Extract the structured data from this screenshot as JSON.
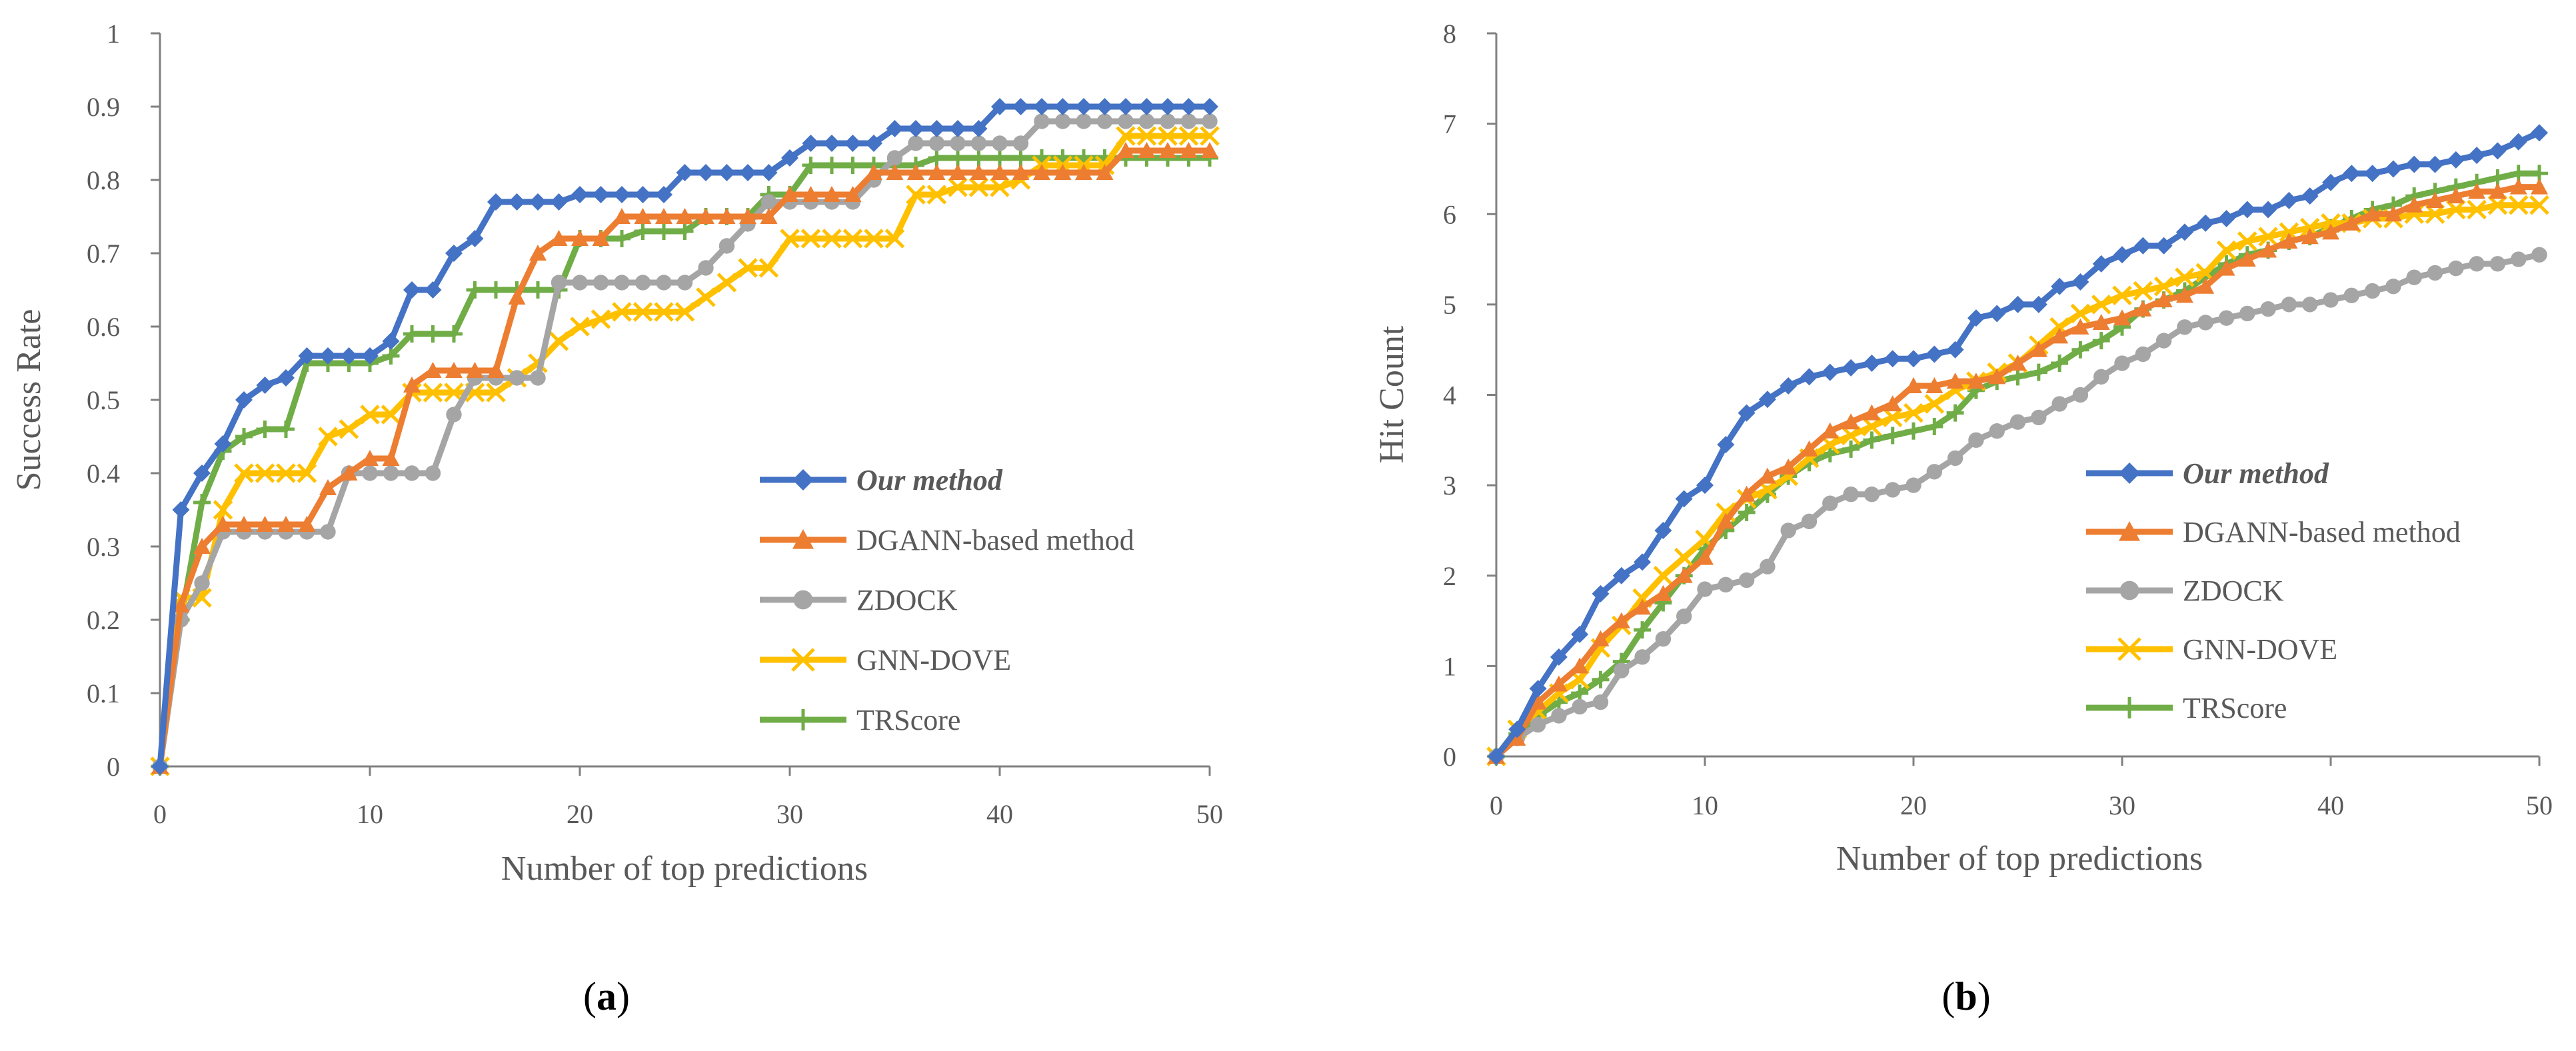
{
  "chart_data": [
    {
      "type": "line",
      "panel_label": "a",
      "xlabel": "Number of top predictions",
      "ylabel": "Success Rate",
      "xlim": [
        0,
        50
      ],
      "ylim": [
        0,
        1
      ],
      "xticks": [
        "0",
        "10",
        "20",
        "30",
        "40",
        "50"
      ],
      "yticks": [
        "0",
        "0.1",
        "0.2",
        "0.3",
        "0.4",
        "0.5",
        "0.6",
        "0.7",
        "0.8",
        "0.9",
        "1"
      ],
      "series": [
        {
          "name": "Our method",
          "emphasis": true,
          "color": "#4472C4",
          "marker": "diamond",
          "values": [
            0,
            0.35,
            0.4,
            0.44,
            0.5,
            0.52,
            0.53,
            0.56,
            0.56,
            0.56,
            0.56,
            0.58,
            0.65,
            0.65,
            0.7,
            0.72,
            0.77,
            0.77,
            0.77,
            0.77,
            0.78,
            0.78,
            0.78,
            0.78,
            0.78,
            0.81,
            0.81,
            0.81,
            0.81,
            0.81,
            0.83,
            0.85,
            0.85,
            0.85,
            0.85,
            0.87,
            0.87,
            0.87,
            0.87,
            0.87,
            0.9,
            0.9,
            0.9,
            0.9,
            0.9,
            0.9,
            0.9,
            0.9,
            0.9,
            0.9,
            0.9
          ]
        },
        {
          "name": "DGANN-based method",
          "emphasis": false,
          "color": "#ED7D31",
          "marker": "triangle",
          "values": [
            0,
            0.22,
            0.3,
            0.33,
            0.33,
            0.33,
            0.33,
            0.33,
            0.38,
            0.4,
            0.42,
            0.42,
            0.52,
            0.54,
            0.54,
            0.54,
            0.54,
            0.64,
            0.7,
            0.72,
            0.72,
            0.72,
            0.75,
            0.75,
            0.75,
            0.75,
            0.75,
            0.75,
            0.75,
            0.75,
            0.78,
            0.78,
            0.78,
            0.78,
            0.81,
            0.81,
            0.81,
            0.81,
            0.81,
            0.81,
            0.81,
            0.81,
            0.81,
            0.81,
            0.81,
            0.81,
            0.84,
            0.84,
            0.84,
            0.84,
            0.84
          ]
        },
        {
          "name": "ZDOCK",
          "emphasis": false,
          "color": "#A5A5A5",
          "marker": "circle",
          "values": [
            0,
            0.2,
            0.25,
            0.32,
            0.32,
            0.32,
            0.32,
            0.32,
            0.32,
            0.4,
            0.4,
            0.4,
            0.4,
            0.4,
            0.48,
            0.53,
            0.53,
            0.53,
            0.53,
            0.66,
            0.66,
            0.66,
            0.66,
            0.66,
            0.66,
            0.66,
            0.68,
            0.71,
            0.74,
            0.77,
            0.77,
            0.77,
            0.77,
            0.77,
            0.8,
            0.83,
            0.85,
            0.85,
            0.85,
            0.85,
            0.85,
            0.85,
            0.88,
            0.88,
            0.88,
            0.88,
            0.88,
            0.88,
            0.88,
            0.88,
            0.88
          ]
        },
        {
          "name": "GNN-DOVE",
          "emphasis": false,
          "color": "#FFC000",
          "marker": "x",
          "values": [
            0,
            0.23,
            0.23,
            0.35,
            0.4,
            0.4,
            0.4,
            0.4,
            0.45,
            0.46,
            0.48,
            0.48,
            0.51,
            0.51,
            0.51,
            0.51,
            0.51,
            0.53,
            0.55,
            0.58,
            0.6,
            0.61,
            0.62,
            0.62,
            0.62,
            0.62,
            0.64,
            0.66,
            0.68,
            0.68,
            0.72,
            0.72,
            0.72,
            0.72,
            0.72,
            0.72,
            0.78,
            0.78,
            0.79,
            0.79,
            0.79,
            0.8,
            0.82,
            0.82,
            0.82,
            0.82,
            0.86,
            0.86,
            0.86,
            0.86,
            0.86
          ]
        },
        {
          "name": "TRScore",
          "emphasis": false,
          "color": "#70AD47",
          "marker": "plus",
          "values": [
            0,
            0.2,
            0.36,
            0.43,
            0.45,
            0.46,
            0.46,
            0.55,
            0.55,
            0.55,
            0.55,
            0.56,
            0.59,
            0.59,
            0.59,
            0.65,
            0.65,
            0.65,
            0.65,
            0.65,
            0.72,
            0.72,
            0.72,
            0.73,
            0.73,
            0.73,
            0.75,
            0.75,
            0.75,
            0.78,
            0.78,
            0.82,
            0.82,
            0.82,
            0.82,
            0.82,
            0.82,
            0.83,
            0.83,
            0.83,
            0.83,
            0.83,
            0.83,
            0.83,
            0.83,
            0.83,
            0.83,
            0.83,
            0.83,
            0.83,
            0.83
          ]
        }
      ]
    },
    {
      "type": "line",
      "panel_label": "b",
      "xlabel": "Number of top predictions",
      "ylabel": "Hit Count",
      "xlim": [
        0,
        50
      ],
      "ylim": [
        0,
        8
      ],
      "xticks": [
        "0",
        "10",
        "20",
        "30",
        "40",
        "50"
      ],
      "yticks": [
        "0",
        "1",
        "2",
        "3",
        "4",
        "5",
        "6",
        "7",
        "8"
      ],
      "series": [
        {
          "name": "Our method",
          "emphasis": true,
          "color": "#4472C4",
          "marker": "diamond",
          "values": [
            0,
            0.3,
            0.75,
            1.1,
            1.35,
            1.8,
            2.0,
            2.15,
            2.5,
            2.85,
            3.0,
            3.45,
            3.8,
            3.95,
            4.1,
            4.2,
            4.25,
            4.3,
            4.35,
            4.4,
            4.4,
            4.45,
            4.5,
            4.85,
            4.9,
            5.0,
            5.0,
            5.2,
            5.25,
            5.45,
            5.55,
            5.65,
            5.65,
            5.8,
            5.9,
            5.95,
            6.05,
            6.05,
            6.15,
            6.2,
            6.35,
            6.45,
            6.45,
            6.5,
            6.55,
            6.55,
            6.6,
            6.65,
            6.7,
            6.8,
            6.9
          ]
        },
        {
          "name": "DGANN-based method",
          "emphasis": false,
          "color": "#ED7D31",
          "marker": "triangle",
          "values": [
            0,
            0.2,
            0.6,
            0.8,
            1.0,
            1.3,
            1.5,
            1.65,
            1.8,
            2.0,
            2.2,
            2.6,
            2.9,
            3.1,
            3.2,
            3.4,
            3.6,
            3.7,
            3.8,
            3.9,
            4.1,
            4.1,
            4.15,
            4.15,
            4.2,
            4.35,
            4.5,
            4.65,
            4.75,
            4.8,
            4.85,
            4.95,
            5.05,
            5.1,
            5.2,
            5.4,
            5.5,
            5.6,
            5.7,
            5.75,
            5.8,
            5.9,
            6.0,
            6.0,
            6.1,
            6.15,
            6.2,
            6.25,
            6.25,
            6.3,
            6.3
          ]
        },
        {
          "name": "ZDOCK",
          "emphasis": false,
          "color": "#A5A5A5",
          "marker": "circle",
          "values": [
            0,
            0.2,
            0.35,
            0.45,
            0.55,
            0.6,
            0.95,
            1.1,
            1.3,
            1.55,
            1.85,
            1.9,
            1.95,
            2.1,
            2.5,
            2.6,
            2.8,
            2.9,
            2.9,
            2.95,
            3.0,
            3.15,
            3.3,
            3.5,
            3.6,
            3.7,
            3.75,
            3.9,
            4.0,
            4.2,
            4.35,
            4.45,
            4.6,
            4.75,
            4.8,
            4.85,
            4.9,
            4.95,
            5.0,
            5.0,
            5.05,
            5.1,
            5.15,
            5.2,
            5.3,
            5.35,
            5.4,
            5.45,
            5.45,
            5.5,
            5.55
          ]
        },
        {
          "name": "GNN-DOVE",
          "emphasis": false,
          "color": "#FFC000",
          "marker": "x",
          "values": [
            0,
            0.3,
            0.5,
            0.7,
            0.85,
            1.2,
            1.45,
            1.75,
            2.0,
            2.2,
            2.4,
            2.7,
            2.85,
            2.95,
            3.1,
            3.3,
            3.45,
            3.55,
            3.65,
            3.75,
            3.8,
            3.9,
            4.05,
            4.15,
            4.25,
            4.35,
            4.55,
            4.75,
            4.9,
            5.0,
            5.1,
            5.15,
            5.2,
            5.3,
            5.35,
            5.6,
            5.7,
            5.75,
            5.8,
            5.85,
            5.9,
            5.9,
            5.95,
            5.95,
            6.0,
            6.0,
            6.05,
            6.05,
            6.1,
            6.1,
            6.1
          ]
        },
        {
          "name": "TRScore",
          "emphasis": false,
          "color": "#70AD47",
          "marker": "plus",
          "values": [
            0,
            0.25,
            0.45,
            0.6,
            0.7,
            0.85,
            1.05,
            1.4,
            1.7,
            2.0,
            2.3,
            2.5,
            2.7,
            2.9,
            3.1,
            3.25,
            3.35,
            3.4,
            3.5,
            3.55,
            3.6,
            3.65,
            3.8,
            4.05,
            4.15,
            4.2,
            4.25,
            4.35,
            4.5,
            4.6,
            4.75,
            4.95,
            5.05,
            5.15,
            5.3,
            5.45,
            5.55,
            5.6,
            5.7,
            5.75,
            5.85,
            5.95,
            6.05,
            6.1,
            6.2,
            6.25,
            6.3,
            6.35,
            6.4,
            6.45,
            6.45
          ]
        }
      ]
    }
  ]
}
